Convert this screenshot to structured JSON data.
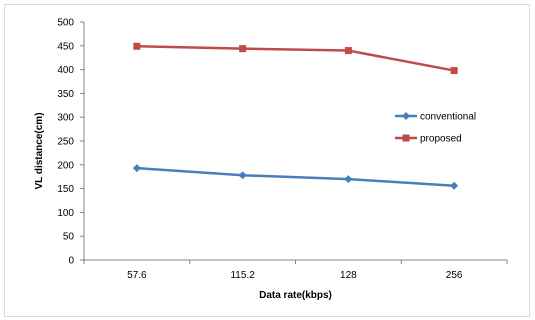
{
  "chart_data": {
    "type": "line",
    "categories": [
      "57.6",
      "115.2",
      "128",
      "256"
    ],
    "series": [
      {
        "name": "conventional",
        "values": [
          193,
          178,
          170,
          156
        ],
        "color": "#4a7ebb",
        "marker": "diamond"
      },
      {
        "name": "proposed",
        "values": [
          449,
          444,
          440,
          398
        ],
        "color": "#be4b48",
        "marker": "square"
      }
    ],
    "title": "",
    "xlabel": "Data  rate(kbps)",
    "ylabel": "VL distance(cm)",
    "ylim": [
      0,
      500
    ],
    "yticks": [
      0,
      50,
      100,
      150,
      200,
      250,
      300,
      350,
      400,
      450,
      500
    ],
    "grid": false,
    "legend_position": "right"
  }
}
